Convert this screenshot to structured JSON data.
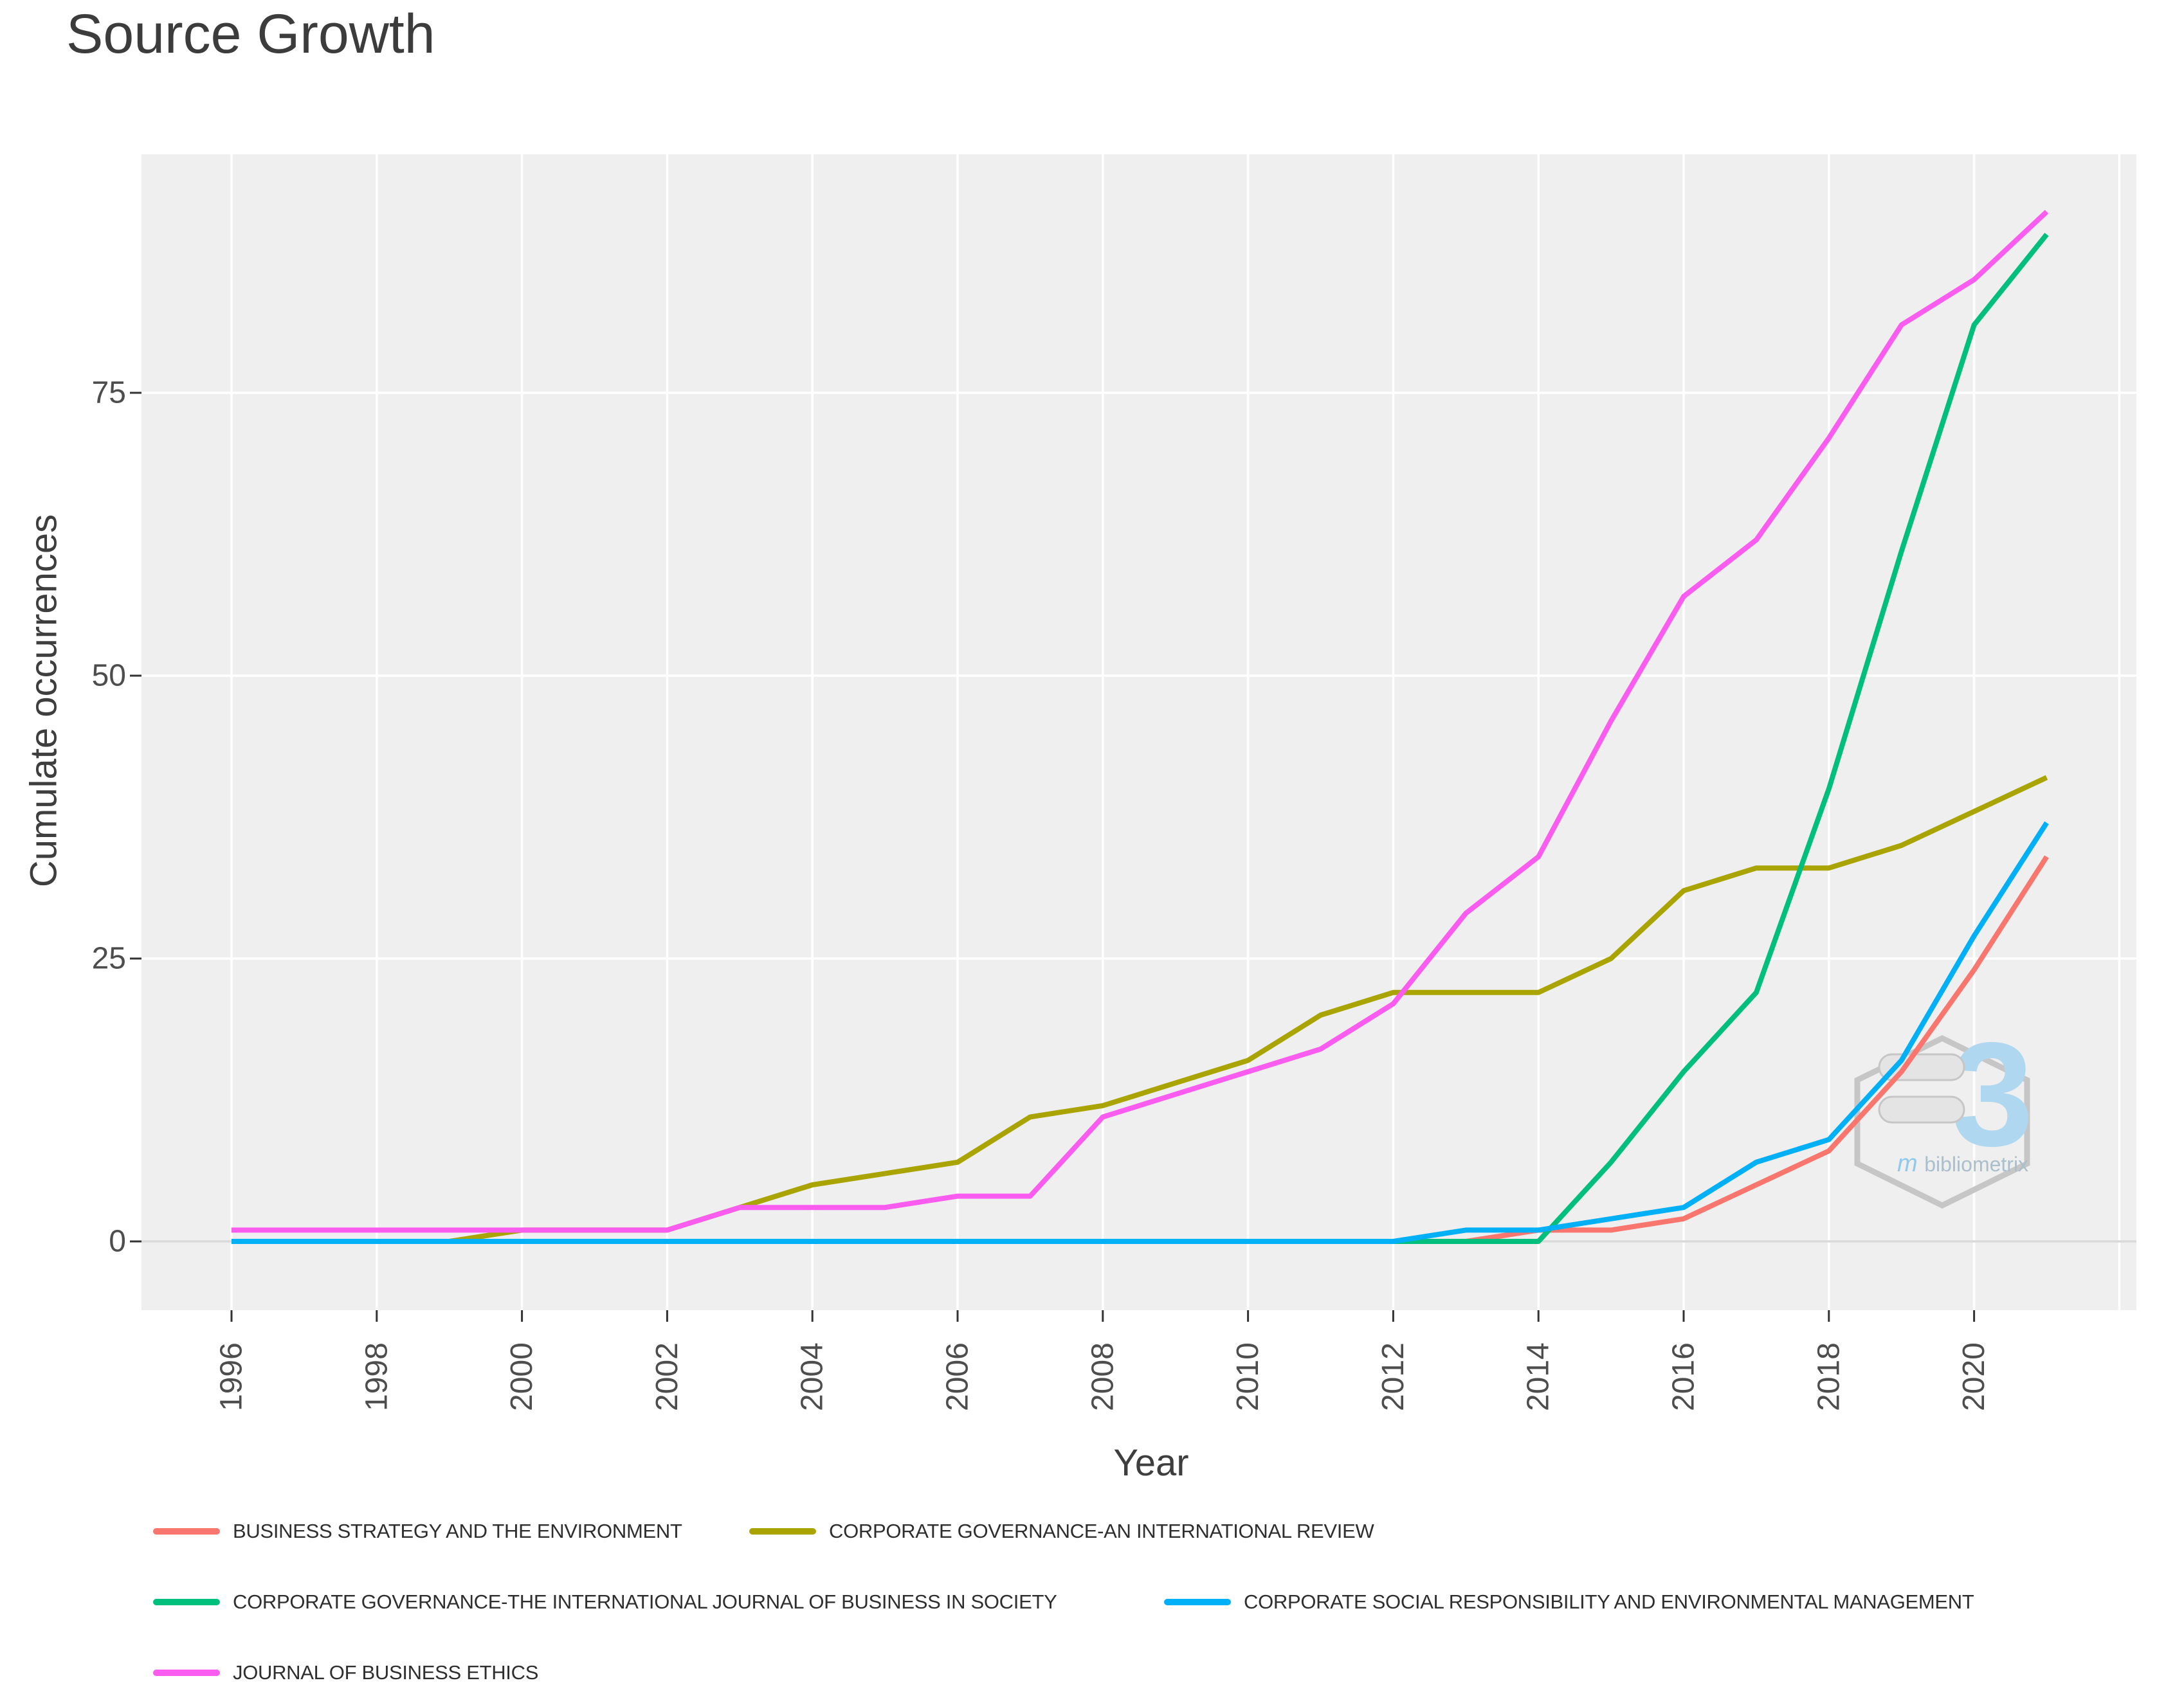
{
  "page": {
    "title": "Source Growth"
  },
  "chart_data": {
    "type": "line",
    "title": "Source Growth",
    "xlabel": "Year",
    "ylabel": "Cumulate occurrences",
    "x": [
      1996,
      1997,
      1998,
      1999,
      2000,
      2001,
      2002,
      2003,
      2004,
      2005,
      2006,
      2007,
      2008,
      2009,
      2010,
      2011,
      2012,
      2013,
      2014,
      2015,
      2016,
      2017,
      2018,
      2019,
      2020,
      2021
    ],
    "x_tick_years": [
      1996,
      1998,
      2000,
      2002,
      2004,
      2006,
      2008,
      2010,
      2012,
      2014,
      2016,
      2018,
      2020
    ],
    "y_ticks": [
      0,
      25,
      50,
      75
    ],
    "ylim": [
      -6,
      96
    ],
    "xlim": [
      1994.8,
      2022.3
    ],
    "grid": "major gridlines on, white on gray panel",
    "legend_position": "bottom-left, three rows",
    "style": {
      "panel_background": "#EFEFEF",
      "gridline_color": "#FFFFFF",
      "zero_line_color": "#D9D9D9",
      "tick_color": "#333333",
      "tick_label_color": "#4D4D4D",
      "axis_title_color": "#3E3E3E",
      "title_color": "#3C3C3C"
    },
    "series": [
      {
        "name": "BUSINESS STRATEGY AND THE ENVIRONMENT",
        "color": "#F8766D",
        "values": [
          0,
          0,
          0,
          0,
          0,
          0,
          0,
          0,
          0,
          0,
          0,
          0,
          0,
          0,
          0,
          0,
          0,
          0,
          1,
          1,
          2,
          5,
          8,
          15,
          24,
          34
        ]
      },
      {
        "name": "CORPORATE GOVERNANCE-AN INTERNATIONAL REVIEW",
        "color": "#A9A400",
        "values": [
          0,
          0,
          0,
          0,
          1,
          1,
          1,
          3,
          5,
          6,
          7,
          11,
          12,
          14,
          16,
          20,
          22,
          22,
          22,
          25,
          31,
          33,
          33,
          35,
          38,
          41
        ]
      },
      {
        "name": "CORPORATE GOVERNANCE-THE INTERNATIONAL JOURNAL OF BUSINESS IN SOCIETY",
        "color": "#00BF7D",
        "values": [
          0,
          0,
          0,
          0,
          0,
          0,
          0,
          0,
          0,
          0,
          0,
          0,
          0,
          0,
          0,
          0,
          0,
          0,
          0,
          7,
          15,
          22,
          40,
          61,
          81,
          89
        ]
      },
      {
        "name": "CORPORATE SOCIAL RESPONSIBILITY AND ENVIRONMENTAL MANAGEMENT",
        "color": "#00B0F6",
        "values": [
          0,
          0,
          0,
          0,
          0,
          0,
          0,
          0,
          0,
          0,
          0,
          0,
          0,
          0,
          0,
          0,
          0,
          1,
          1,
          2,
          3,
          7,
          9,
          16,
          27,
          37
        ]
      },
      {
        "name": "JOURNAL OF BUSINESS ETHICS",
        "color": "#F95CEF",
        "values": [
          1,
          1,
          1,
          1,
          1,
          1,
          1,
          3,
          3,
          3,
          4,
          4,
          11,
          13,
          15,
          17,
          21,
          29,
          34,
          46,
          57,
          62,
          71,
          81,
          85,
          91
        ]
      }
    ]
  },
  "watermark": {
    "logo_glyph": "3",
    "caption_script": "m",
    "caption": "bibliometrix",
    "hex_color": "#C6C6C6",
    "logo_color": "#AFD8F0",
    "caption_color": "#A9BFCB",
    "caption_script_color": "#8FC9EC"
  }
}
